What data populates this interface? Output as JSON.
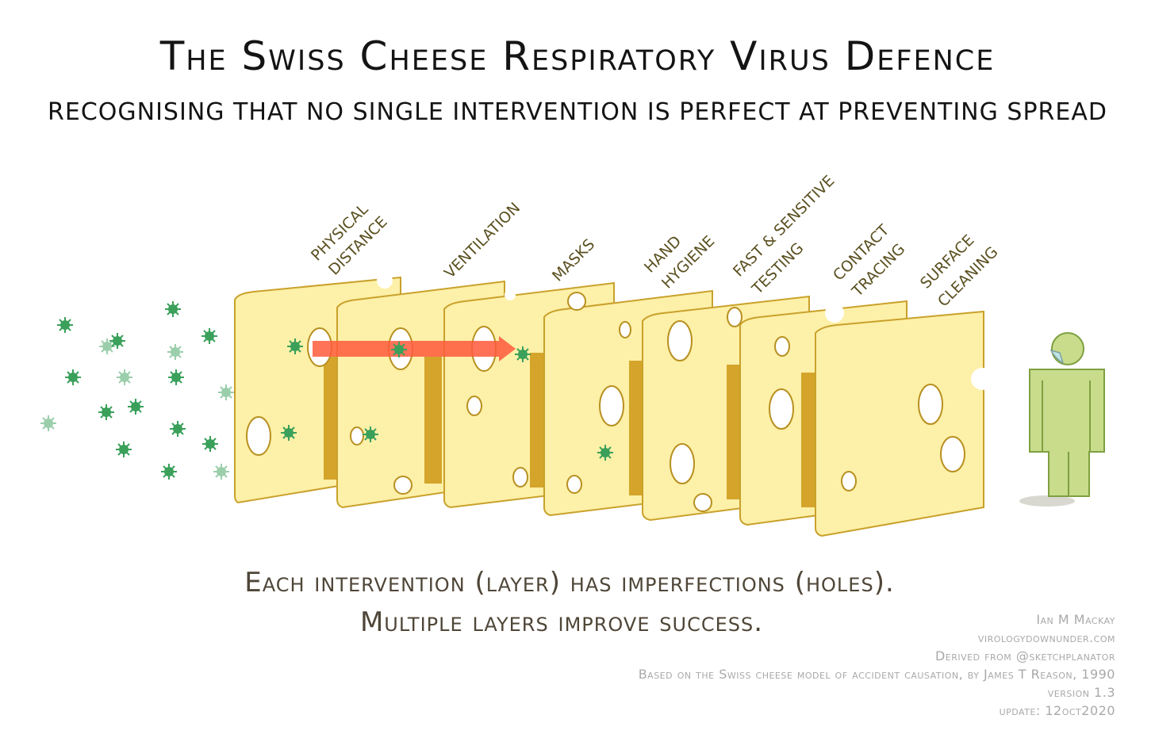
{
  "title": "The Swiss Cheese Respiratory Virus Defence",
  "subtitle": "RECOGNISING THAT NO SINGLE INTERVENTION IS PERFECT AT PREVENTING SPREAD",
  "layers": [
    {
      "line1": "PHYSICAL",
      "line2": "DISTANCE"
    },
    {
      "line1": "VENTILATION",
      "line2": ""
    },
    {
      "line1": "MASKS",
      "line2": ""
    },
    {
      "line1": "HAND",
      "line2": "HYGIENE"
    },
    {
      "line1": "FAST & SENSITIVE",
      "line2": "TESTING"
    },
    {
      "line1": "CONTACT",
      "line2": "TRACING"
    },
    {
      "line1": "SURFACE",
      "line2": "CLEANING"
    }
  ],
  "caption": {
    "line1": "Each intervention (layer) has imperfections (holes).",
    "line2": "Multiple layers improve success."
  },
  "credits": {
    "author": "Ian M Mackay",
    "site": "virologydownunder.com",
    "derived": "Derived from @sketchplanator",
    "based": "Based on the Swiss cheese model of accident causation, by James T Reason, 1990",
    "version": "version 1.3",
    "update": "update: 12oct2020"
  },
  "colors": {
    "cheese": "#fdf0a8",
    "cheese_edge": "#d4a52a",
    "virus": "#3aa05a",
    "arrow": "#ff5a3c",
    "person": "#c8dc8c"
  }
}
